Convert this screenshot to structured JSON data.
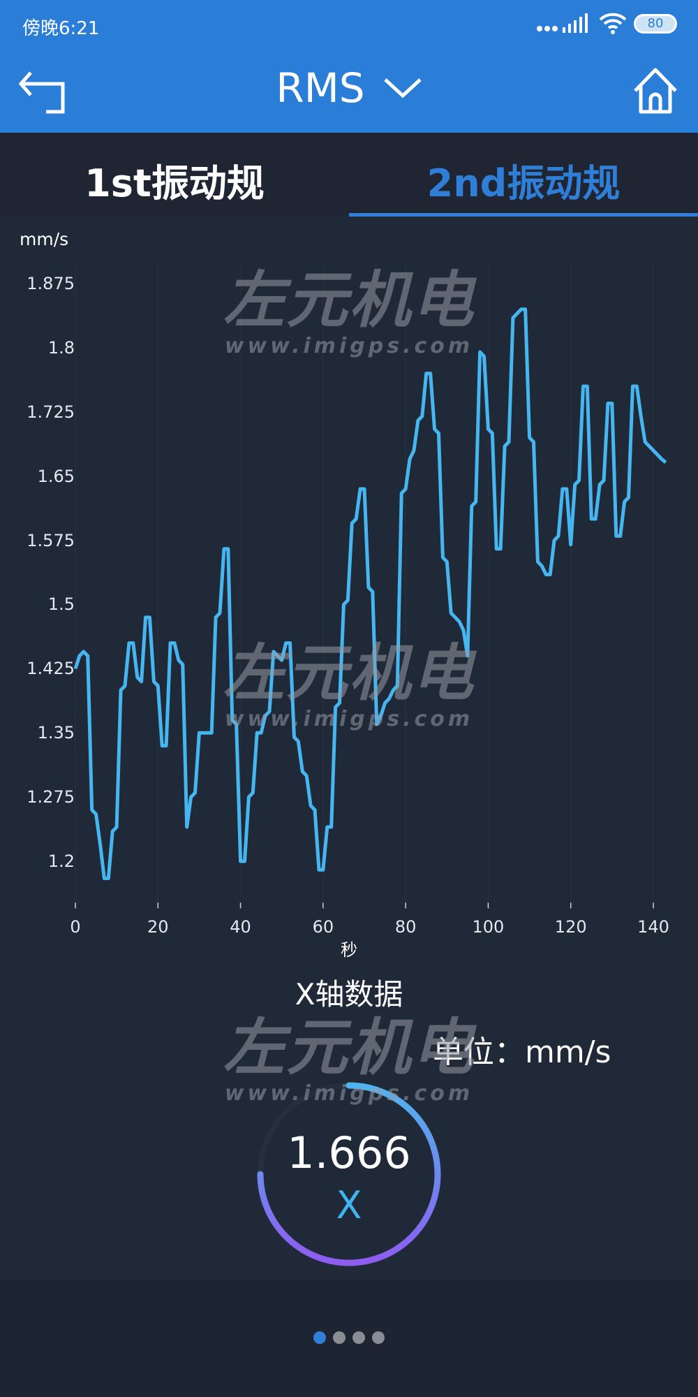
{
  "status_bar": {
    "time": "傍晚6:21",
    "battery": "80"
  },
  "header": {
    "title": "RMS",
    "back_icon": "back-arrow-icon",
    "home_icon": "home-icon",
    "dropdown_icon": "chevron-down-icon"
  },
  "tabs": [
    {
      "label": "1st振动规",
      "active": false
    },
    {
      "label": "2nd振动规",
      "active": true
    }
  ],
  "watermark": {
    "brand": "左元机电",
    "url": "www.imigps.com"
  },
  "colors": {
    "accent": "#2f7fd8",
    "line": "#45b6f0",
    "gauge_start": "#4fb4ee",
    "gauge_end": "#8e5cf0"
  },
  "chart_data": {
    "type": "line",
    "ylabel": "mm/s",
    "xlabel": "秒",
    "title": "X轴数据",
    "x_ticks": [
      "0",
      "20",
      "40",
      "60",
      "80",
      "100",
      "120",
      "140"
    ],
    "y_ticks": [
      "1.875",
      "1.8",
      "1.725",
      "1.65",
      "1.575",
      "1.5",
      "1.425",
      "1.35",
      "1.275",
      "1.2"
    ],
    "xlim": [
      0,
      140
    ],
    "ylim": [
      1.145,
      1.9
    ],
    "grid": "vertical",
    "values": [
      1.425,
      1.44,
      1.445,
      1.44,
      1.26,
      1.255,
      1.22,
      1.18,
      1.18,
      1.235,
      1.24,
      1.4,
      1.405,
      1.455,
      1.455,
      1.415,
      1.41,
      1.485,
      1.485,
      1.41,
      1.405,
      1.335,
      1.335,
      1.455,
      1.455,
      1.435,
      1.43,
      1.24,
      1.275,
      1.28,
      1.35,
      1.35,
      1.35,
      1.35,
      1.485,
      1.49,
      1.565,
      1.565,
      1.365,
      1.36,
      1.2,
      1.2,
      1.275,
      1.28,
      1.35,
      1.35,
      1.37,
      1.375,
      1.445,
      1.44,
      1.435,
      1.455,
      1.455,
      1.345,
      1.34,
      1.305,
      1.3,
      1.265,
      1.26,
      1.19,
      1.19,
      1.24,
      1.24,
      1.38,
      1.385,
      1.5,
      1.505,
      1.595,
      1.6,
      1.635,
      1.635,
      1.52,
      1.515,
      1.36,
      1.37,
      1.385,
      1.39,
      1.4,
      1.405,
      1.63,
      1.635,
      1.67,
      1.68,
      1.715,
      1.72,
      1.77,
      1.77,
      1.705,
      1.7,
      1.555,
      1.55,
      1.49,
      1.485,
      1.48,
      1.47,
      1.44,
      1.615,
      1.62,
      1.795,
      1.79,
      1.705,
      1.7,
      1.565,
      1.565,
      1.685,
      1.69,
      1.835,
      1.84,
      1.845,
      1.845,
      1.695,
      1.69,
      1.55,
      1.545,
      1.535,
      1.535,
      1.575,
      1.58,
      1.635,
      1.635,
      1.57,
      1.64,
      1.645,
      1.755,
      1.755,
      1.6,
      1.6,
      1.64,
      1.645,
      1.735,
      1.735,
      1.58,
      1.58,
      1.62,
      1.625,
      1.755,
      1.755,
      1.72,
      1.69,
      1.685,
      1.68,
      1.675,
      1.67,
      1.666
    ]
  },
  "reading": {
    "unit_label": "单位：mm/s",
    "value": "1.666",
    "axis": "X",
    "gauge_fill": 0.75
  },
  "pager": {
    "count": 4,
    "active": 0
  }
}
